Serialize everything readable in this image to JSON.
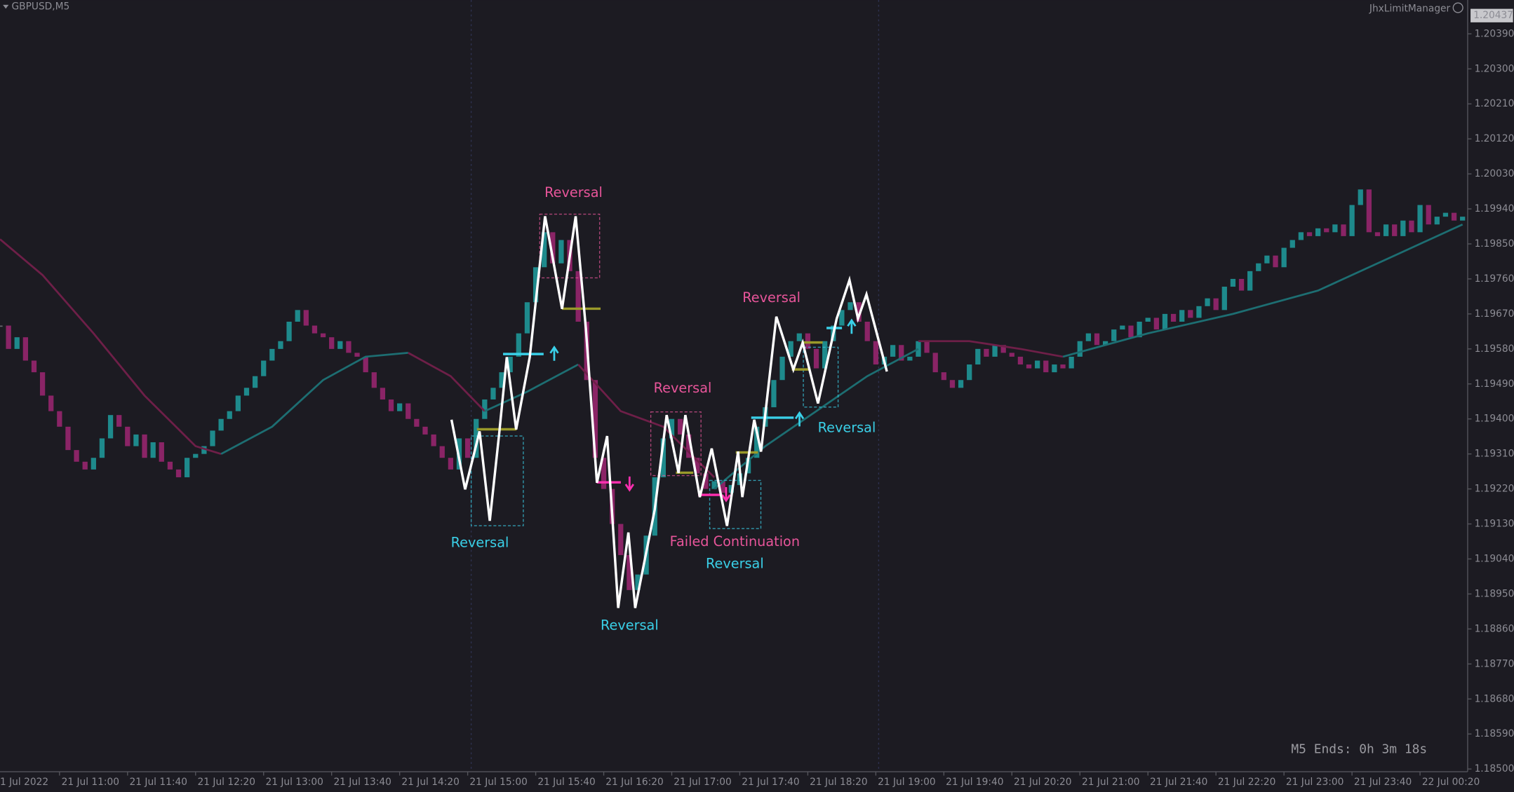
{
  "chart_data": {
    "type": "candlestick",
    "symbol": "GBPUSD,M5",
    "indicator": "JhxLimitManager",
    "timer": "M5 Ends: 0h 3m 18s",
    "last_price": {
      "value": 1.20437,
      "label": "1.20437"
    },
    "xlim": [
      0,
      172.6
    ],
    "ylim": [
      1.18493,
      1.20477
    ],
    "yticks": [
      {
        "value": 1.2039,
        "label": "1.20390"
      },
      {
        "value": 1.203,
        "label": "1.20300"
      },
      {
        "value": 1.2021,
        "label": "1.20210"
      },
      {
        "value": 1.2012,
        "label": "1.20120"
      },
      {
        "value": 1.2003,
        "label": "1.20030"
      },
      {
        "value": 1.1994,
        "label": "1.19940"
      },
      {
        "value": 1.1985,
        "label": "1.19850"
      },
      {
        "value": 1.1976,
        "label": "1.19760"
      },
      {
        "value": 1.1967,
        "label": "1.19670"
      },
      {
        "value": 1.1958,
        "label": "1.19580"
      },
      {
        "value": 1.1949,
        "label": "1.19490"
      },
      {
        "value": 1.194,
        "label": "1.19400"
      },
      {
        "value": 1.1931,
        "label": "1.19310"
      },
      {
        "value": 1.1922,
        "label": "1.19220"
      },
      {
        "value": 1.1913,
        "label": "1.19130"
      },
      {
        "value": 1.1904,
        "label": "1.19040"
      },
      {
        "value": 1.1895,
        "label": "1.18950"
      },
      {
        "value": 1.1886,
        "label": "1.18860"
      },
      {
        "value": 1.1877,
        "label": "1.18770"
      },
      {
        "value": 1.1868,
        "label": "1.18680"
      },
      {
        "value": 1.1859,
        "label": "1.18590"
      },
      {
        "value": 1.185,
        "label": "1.18500"
      }
    ],
    "xticks": [
      {
        "value": -1,
        "label": "1 Jul 2022"
      },
      {
        "value": 7,
        "label": "21 Jul 11:00"
      },
      {
        "value": 15,
        "label": "21 Jul 11:40"
      },
      {
        "value": 23,
        "label": "21 Jul 12:20"
      },
      {
        "value": 31,
        "label": "21 Jul 13:00"
      },
      {
        "value": 39,
        "label": "21 Jul 13:40"
      },
      {
        "value": 47,
        "label": "21 Jul 14:20"
      },
      {
        "value": 55,
        "label": "21 Jul 15:00"
      },
      {
        "value": 63,
        "label": "21 Jul 15:40"
      },
      {
        "value": 71,
        "label": "21 Jul 16:20"
      },
      {
        "value": 79,
        "label": "21 Jul 17:00"
      },
      {
        "value": 87,
        "label": "21 Jul 17:40"
      },
      {
        "value": 95,
        "label": "21 Jul 18:20"
      },
      {
        "value": 103,
        "label": "21 Jul 19:00"
      },
      {
        "value": 111,
        "label": "21 Jul 19:40"
      },
      {
        "value": 119,
        "label": "21 Jul 20:20"
      },
      {
        "value": 127,
        "label": "21 Jul 21:00"
      },
      {
        "value": 135,
        "label": "21 Jul 21:40"
      },
      {
        "value": 143,
        "label": "21 Jul 22:20"
      },
      {
        "value": 151,
        "label": "21 Jul 23:00"
      },
      {
        "value": 159,
        "label": "21 Jul 23:40"
      },
      {
        "value": 167,
        "label": "22 Jul 00:20"
      }
    ],
    "up_color": "#1e8a8c",
    "down_color": "#8a2466",
    "close": [
      1.1964,
      1.1958,
      1.1961,
      1.1955,
      1.1952,
      1.1946,
      1.1942,
      1.1938,
      1.1932,
      1.1929,
      1.1927,
      1.193,
      1.1935,
      1.1941,
      1.1938,
      1.1933,
      1.1936,
      1.193,
      1.1934,
      1.1929,
      1.1927,
      1.1925,
      1.193,
      1.1931,
      1.1933,
      1.1937,
      1.194,
      1.1942,
      1.1946,
      1.1948,
      1.1951,
      1.1955,
      1.1958,
      1.196,
      1.1965,
      1.1968,
      1.1964,
      1.1962,
      1.1961,
      1.1958,
      1.196,
      1.1957,
      1.1956,
      1.1952,
      1.1948,
      1.1945,
      1.1942,
      1.1944,
      1.194,
      1.1938,
      1.1936,
      1.1933,
      1.193,
      1.1927,
      1.1935,
      1.193,
      1.194,
      1.1945,
      1.1948,
      1.1952,
      1.1956,
      1.1962,
      1.197,
      1.1979,
      1.1988,
      1.198,
      1.1986,
      1.1978,
      1.1965,
      1.195,
      1.193,
      1.1922,
      1.1913,
      1.1905,
      1.1896,
      1.19,
      1.191,
      1.1925,
      1.1935,
      1.194,
      1.1936,
      1.193,
      1.1926,
      1.1922,
      1.1924,
      1.1921,
      1.1923,
      1.1926,
      1.193,
      1.1938,
      1.1943,
      1.195,
      1.1956,
      1.196,
      1.1962,
      1.1958,
      1.1953,
      1.196,
      1.1964,
      1.1968,
      1.197,
      1.1965,
      1.196,
      1.1954,
      1.1956,
      1.1959,
      1.1955,
      1.1956,
      1.196,
      1.1957,
      1.1952,
      1.195,
      1.1948,
      1.195,
      1.1954,
      1.1958,
      1.1956,
      1.1959,
      1.1957,
      1.1956,
      1.1954,
      1.1953,
      1.1955,
      1.1952,
      1.1954,
      1.1953,
      1.1956,
      1.196,
      1.1962,
      1.1959,
      1.196,
      1.1963,
      1.1964,
      1.1961,
      1.1965,
      1.1966,
      1.1963,
      1.1967,
      1.1965,
      1.1968,
      1.1966,
      1.1969,
      1.1971,
      1.1968,
      1.1974,
      1.1976,
      1.1973,
      1.1978,
      1.198,
      1.1982,
      1.1979,
      1.1984,
      1.1986,
      1.1988,
      1.1987,
      1.1989,
      1.1988,
      1.199,
      1.1987,
      1.1995,
      1.1999,
      1.1988,
      1.1987,
      1.199,
      1.1987,
      1.1991,
      1.1988,
      1.1995,
      1.199,
      1.1992,
      1.1993,
      1.1991,
      1.1992
    ],
    "ma_segments": [
      {
        "color": "#6e1f48",
        "x": [
          0,
          5,
          11,
          17,
          23,
          26
        ],
        "values": [
          1.19862,
          1.1977,
          1.1962,
          1.1946,
          1.1933,
          1.1931
        ]
      },
      {
        "color": "#1d6e72",
        "x": [
          26,
          32,
          38,
          43,
          48
        ],
        "values": [
          1.1931,
          1.1938,
          1.195,
          1.1956,
          1.1957
        ]
      },
      {
        "color": "#6e1f48",
        "x": [
          48,
          53,
          57
        ],
        "values": [
          1.1957,
          1.1951,
          1.1942
        ]
      },
      {
        "color": "#1d6e72",
        "x": [
          57,
          62,
          68
        ],
        "values": [
          1.1942,
          1.1947,
          1.1954
        ]
      },
      {
        "color": "#6e1f48",
        "x": [
          68,
          73,
          78,
          84
        ],
        "values": [
          1.1954,
          1.1942,
          1.1938,
          1.1925
        ]
      },
      {
        "color": "#1d6e72",
        "x": [
          84,
          90,
          96,
          102,
          108
        ],
        "values": [
          1.1922,
          1.1933,
          1.1942,
          1.1951,
          1.1958
        ]
      },
      {
        "color": "#6e1f48",
        "x": [
          108,
          114,
          120,
          125
        ],
        "values": [
          1.196,
          1.196,
          1.1958,
          1.1956
        ]
      },
      {
        "color": "#1d6e72",
        "x": [
          125,
          135,
          145,
          155,
          165,
          172
        ],
        "values": [
          1.1956,
          1.1962,
          1.1967,
          1.1973,
          1.1983,
          1.199
        ]
      }
    ],
    "zigzag": {
      "color": "#ffffff",
      "x": [
        53.1,
        54.7,
        56.4,
        57.6,
        58.7,
        59.6,
        60.7,
        62.3,
        64.1,
        66.1,
        67.7,
        68.9,
        70.2,
        71.4,
        72.7,
        73.9,
        74.7,
        77,
        78.4,
        79.8,
        80.6,
        82.3,
        83.7,
        85.5,
        86.8,
        87.3,
        88.7,
        89.5,
        91.3,
        93.3,
        94.4,
        96.2,
        98.4,
        99.9,
        100.9,
        101.9,
        104.3
      ],
      "values": [
        1.19398,
        1.19219,
        1.19368,
        1.19138,
        1.19361,
        1.19559,
        1.19373,
        1.19559,
        1.19921,
        1.19683,
        1.19921,
        1.19633,
        1.19236,
        1.19356,
        1.18914,
        1.19108,
        1.18914,
        1.19167,
        1.1941,
        1.19261,
        1.1941,
        1.19199,
        1.19324,
        1.19125,
        1.19316,
        1.19199,
        1.19398,
        1.19316,
        1.19663,
        1.19527,
        1.19596,
        1.1944,
        1.19658,
        1.19757,
        1.19658,
        1.1972,
        1.19522
      ]
    },
    "annotations": [
      {
        "text": "Reversal",
        "color": "#e8559a"
      },
      {
        "text": "Reversal",
        "color": "#3ad0e8"
      },
      {
        "text": "Reversal",
        "color": "#e8559a"
      },
      {
        "text": "Reversal",
        "color": "#e8559a"
      },
      {
        "text": "Reversal",
        "color": "#3ad0e8"
      },
      {
        "text": "Failed Continuation",
        "color": "#e8559a"
      },
      {
        "text": "Reversal",
        "color": "#3ad0e8"
      },
      {
        "text": "Reversal",
        "color": "#3ad0e8"
      }
    ]
  }
}
